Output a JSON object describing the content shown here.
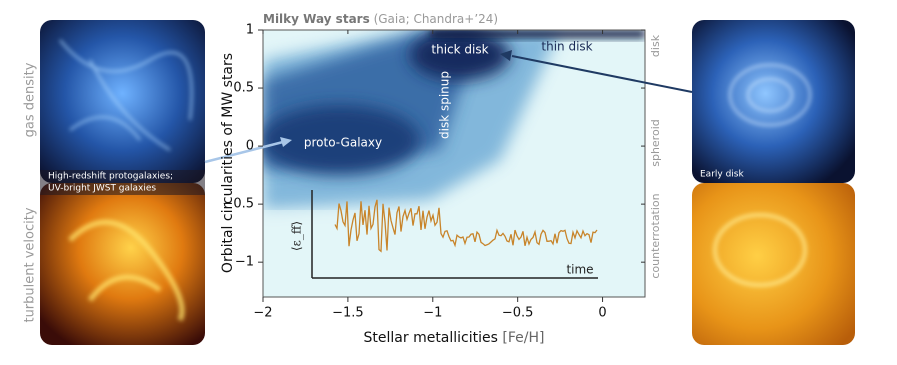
{
  "chart_data": {
    "type": "density",
    "title": "Milky Way stars",
    "source": "(Gaia; Chandra+’24)",
    "xlabel": "Stellar metallicities",
    "xlabel_unit": "[Fe/H]",
    "ylabel": "Orbital circularities of MW stars",
    "xlim": [
      -2,
      0.25
    ],
    "ylim": [
      -1.3,
      1.0
    ],
    "xticks": [
      {
        "value": -2,
        "label": "−2"
      },
      {
        "value": -1.5,
        "label": "−1.5"
      },
      {
        "value": -1,
        "label": "−1"
      },
      {
        "value": -0.5,
        "label": "−0.5"
      },
      0
    ],
    "yticks": [
      {
        "value": -1,
        "label": "−1"
      },
      {
        "value": -0.5,
        "label": "−0.5"
      },
      0,
      0.5,
      1
    ],
    "right_labels": [
      "disk",
      "spheroid",
      "counterrotation"
    ],
    "annotations": [
      "thick disk",
      "thin disk",
      "disk spinup",
      "proto-Galaxy"
    ],
    "inset": {
      "ylabel": "⟨ε_ff⟩",
      "xlabel": "time"
    },
    "left_panel": {
      "top_label": "gas density",
      "bottom_label": "turbulent velocity",
      "caption_1": "High-redshift protogalaxies;",
      "caption_2": "UV-bright JWST galaxies"
    },
    "right_panel": {
      "caption": "Early disk"
    }
  }
}
